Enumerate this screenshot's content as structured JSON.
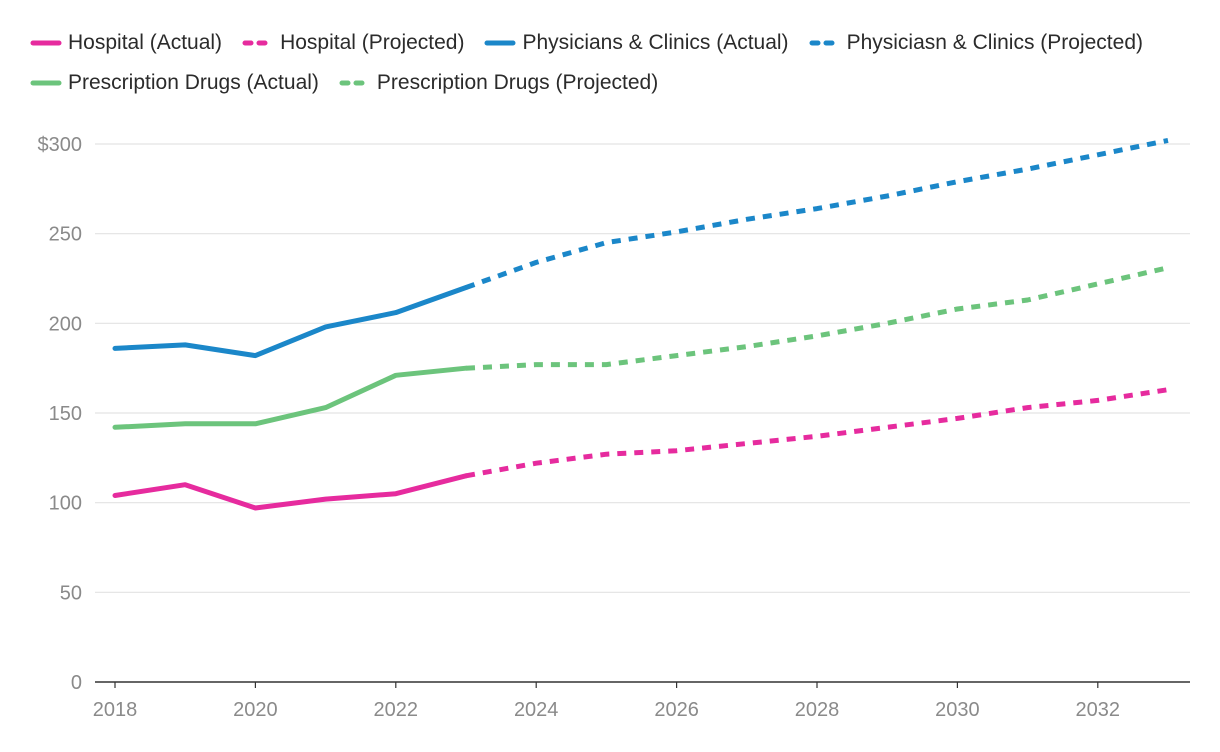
{
  "chart_data": {
    "type": "line",
    "title": "",
    "xlabel": "",
    "ylabel": "",
    "x_ticks": [
      "2018",
      "2020",
      "2022",
      "2024",
      "2026",
      "2028",
      "2030",
      "2032"
    ],
    "y_ticks": [
      "0",
      "50",
      "100",
      "150",
      "200",
      "250",
      "$300"
    ],
    "xlim": [
      2018,
      2033
    ],
    "ylim": [
      0,
      300
    ],
    "grid": true,
    "legend_position": "top",
    "series": [
      {
        "name": "Hospital (Actual)",
        "color": "#e62b9e",
        "style": "solid",
        "x": [
          2018,
          2019,
          2020,
          2021,
          2022,
          2023
        ],
        "values": [
          104,
          110,
          97,
          102,
          105,
          115
        ]
      },
      {
        "name": "Hospital (Projected)",
        "color": "#e62b9e",
        "style": "dashed",
        "x": [
          2023,
          2024,
          2025,
          2026,
          2027,
          2028,
          2029,
          2030,
          2031,
          2032,
          2033
        ],
        "values": [
          115,
          122,
          127,
          129,
          133,
          137,
          142,
          147,
          153,
          157,
          163
        ]
      },
      {
        "name": "Physicians & Clinics (Actual)",
        "color": "#1b87c9",
        "style": "solid",
        "x": [
          2018,
          2019,
          2020,
          2021,
          2022,
          2023
        ],
        "values": [
          186,
          188,
          182,
          198,
          206,
          220
        ]
      },
      {
        "name": "Physiciasn & Clinics (Projected)",
        "color": "#1b87c9",
        "style": "dashed",
        "x": [
          2023,
          2024,
          2025,
          2026,
          2027,
          2028,
          2029,
          2030,
          2031,
          2032,
          2033
        ],
        "values": [
          220,
          234,
          245,
          251,
          258,
          264,
          271,
          279,
          286,
          294,
          302
        ]
      },
      {
        "name": "Prescription Drugs (Actual)",
        "color": "#6cc47c",
        "style": "solid",
        "x": [
          2018,
          2019,
          2020,
          2021,
          2022,
          2023
        ],
        "values": [
          142,
          144,
          144,
          153,
          171,
          175
        ]
      },
      {
        "name": "Prescription Drugs (Projected)",
        "color": "#6cc47c",
        "style": "dashed",
        "x": [
          2023,
          2024,
          2025,
          2026,
          2027,
          2028,
          2029,
          2030,
          2031,
          2032,
          2033
        ],
        "values": [
          175,
          177,
          177,
          182,
          187,
          193,
          200,
          208,
          213,
          222,
          231
        ]
      }
    ]
  }
}
